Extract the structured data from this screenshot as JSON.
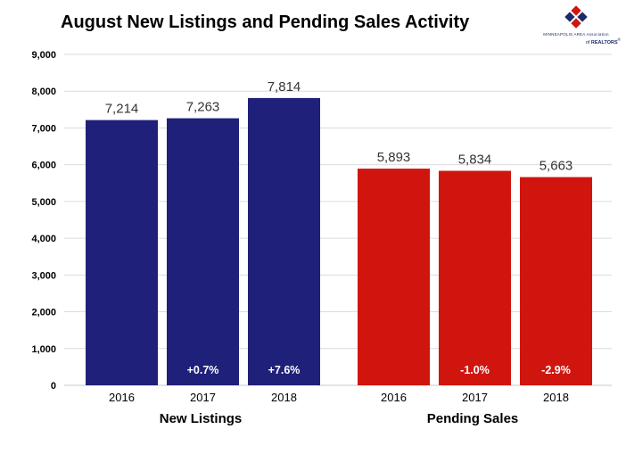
{
  "title": "August New Listings and Pending Sales Activity",
  "logo": {
    "line1": "MINNEAPOLIS AREA Association",
    "line2_prefix": "of",
    "line2_name": "REALTORS",
    "mark": "®"
  },
  "colors": {
    "new_listings": "#1f2079",
    "pending_sales": "#d0150f",
    "grid": "#dcdcdc",
    "logo_red": "#d0150f",
    "logo_blue": "#1b2a6b"
  },
  "chart_data": {
    "type": "bar",
    "title": "August New Listings and Pending Sales Activity",
    "ylim": [
      0,
      9000
    ],
    "yticks": [
      0,
      1000,
      2000,
      3000,
      4000,
      5000,
      6000,
      7000,
      8000,
      9000
    ],
    "ytick_labels": [
      "0",
      "1,000",
      "2,000",
      "3,000",
      "4,000",
      "5,000",
      "6,000",
      "7,000",
      "8,000",
      "9,000"
    ],
    "groups": [
      {
        "name": "New Listings",
        "color": "#1f2079",
        "bars": [
          {
            "year": "2016",
            "value": 7214,
            "label": "7,214",
            "change": ""
          },
          {
            "year": "2017",
            "value": 7263,
            "label": "7,263",
            "change": "+0.7%"
          },
          {
            "year": "2018",
            "value": 7814,
            "label": "7,814",
            "change": "+7.6%"
          }
        ]
      },
      {
        "name": "Pending Sales",
        "color": "#d0150f",
        "bars": [
          {
            "year": "2016",
            "value": 5893,
            "label": "5,893",
            "change": ""
          },
          {
            "year": "2017",
            "value": 5834,
            "label": "5,834",
            "change": "-1.0%"
          },
          {
            "year": "2018",
            "value": 5663,
            "label": "5,663",
            "change": "-2.9%"
          }
        ]
      }
    ]
  }
}
